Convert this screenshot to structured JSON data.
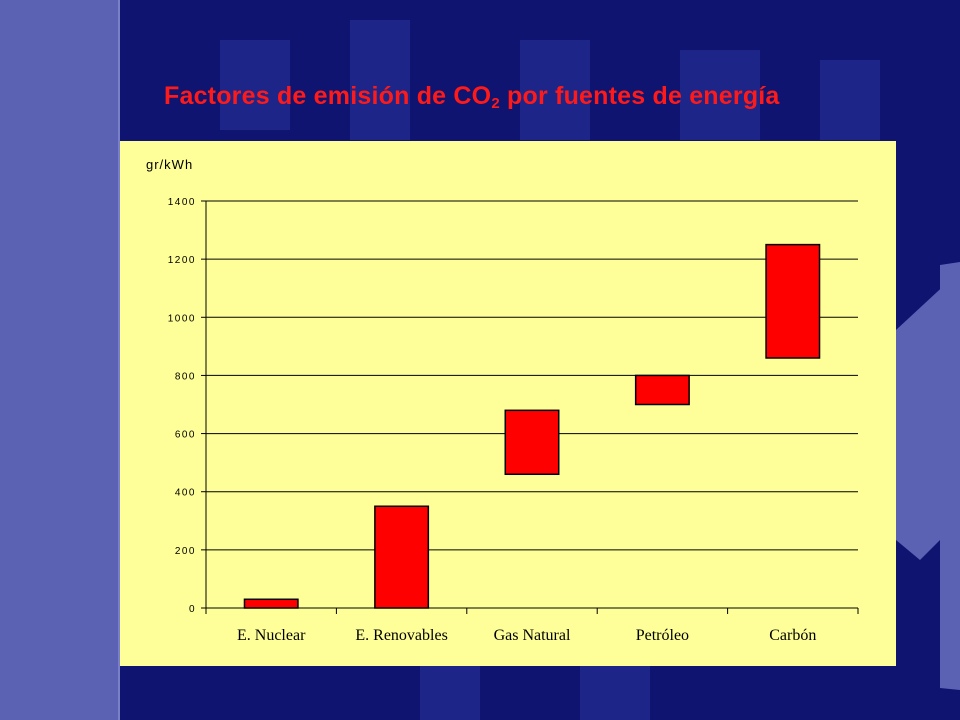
{
  "slide": {
    "title_main": "Factores de emisión de CO",
    "title_sub": "2",
    "title_tail": " por fuentes de energía"
  },
  "colors": {
    "background": "#0f1470",
    "left_band": "#5b62b3",
    "title": "#ff1a1a",
    "panel": "#ffff99",
    "bar_fill": "#ff0000"
  },
  "chart_data": {
    "type": "bar",
    "subtype": "floating-range",
    "title": "",
    "xlabel": "",
    "ylabel": "gr/kWh",
    "ylim": [
      0,
      1400
    ],
    "yticks": [
      0,
      200,
      400,
      600,
      800,
      1000,
      1200,
      1400
    ],
    "ytick_labels": [
      "0",
      "200",
      "400",
      "600",
      "800",
      "1000",
      "1200",
      "1400"
    ],
    "grid": true,
    "categories": [
      "E. Nuclear",
      "E. Renovables",
      "Gas Natural",
      "Petróleo",
      "Carbón"
    ],
    "ranges": [
      {
        "min": 0,
        "max": 30
      },
      {
        "min": 0,
        "max": 350
      },
      {
        "min": 460,
        "max": 680
      },
      {
        "min": 700,
        "max": 800
      },
      {
        "min": 860,
        "max": 1250
      }
    ]
  }
}
